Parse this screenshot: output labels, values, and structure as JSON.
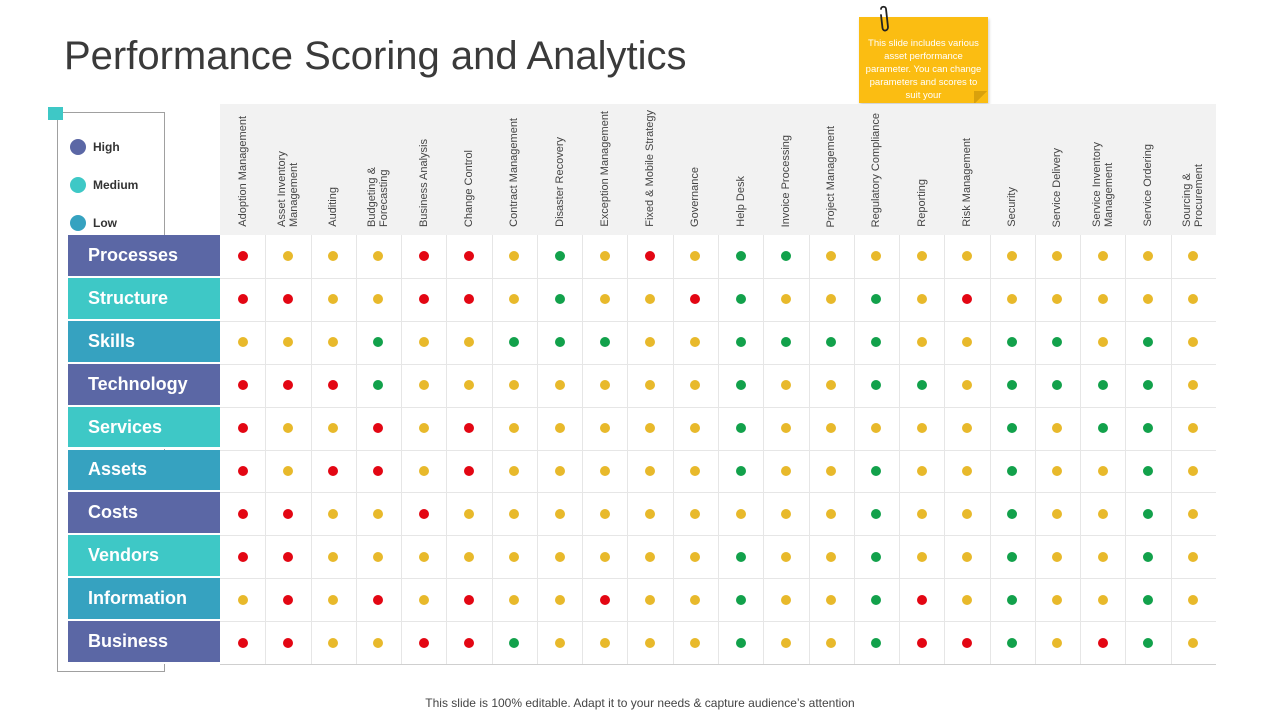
{
  "title": "Performance Scoring and Analytics",
  "note": "This slide includes various asset performance parameter. You can change parameters and scores to suit your",
  "footer": "This slide is 100% editable. Adapt it to your needs & capture audience’s attention",
  "legend": [
    {
      "label": "High",
      "color": "#5b67a5"
    },
    {
      "label": "Medium",
      "color": "#3ec8c6"
    },
    {
      "label": "Low",
      "color": "#36a2c0"
    }
  ],
  "colors": {
    "status": {
      "R": "#e30613",
      "Y": "#e8b92b",
      "G": "#12a14b"
    },
    "row_palette": [
      "#5b67a5",
      "#3ec8c6",
      "#36a2c0"
    ]
  },
  "columns": [
    "Adoption Management",
    "Asset Inventory Management",
    "Auditing",
    "Budgeting & Forecasting",
    "Business Analysis",
    "Change Control",
    "Contract Management",
    "Disaster Recovery",
    "Exception Management",
    "Fixed & Mobile Strategy",
    "Governance",
    "Help Desk",
    "Invoice Processing",
    "Project Management",
    "Regulatory Compliance",
    "Reporting",
    "Risk Management",
    "Security",
    "Service Delivery",
    "Service Inventory Management",
    "Service Ordering",
    "Sourcing & Procurement"
  ],
  "rows": [
    {
      "label": "Processes",
      "scores": "RYYYRRYGYRYGGYYYYYYYYY"
    },
    {
      "label": "Structure",
      "scores": "RRYYRRYGYYRGYYGYRYYYYY"
    },
    {
      "label": "Skills",
      "scores": "YYYGYYGGGYYGGGGYYGGYGY"
    },
    {
      "label": "Technology",
      "scores": "RRRGYYYYYYYGYYGGYGGGGY"
    },
    {
      "label": "Services",
      "scores": "RYYRYRYYYYYGYYYYYGYGGY"
    },
    {
      "label": "Assets",
      "scores": "RYRRYRYYYYYGYYGYYGYYGY"
    },
    {
      "label": "Costs",
      "scores": "RRYYRYYYYYYYYYGYYGYYGY"
    },
    {
      "label": "Vendors",
      "scores": "RRYYYYYYYYYGYYGYYGYYGY"
    },
    {
      "label": "Information",
      "scores": "YRYRYRYYRYYGYYGRYGYYGY"
    },
    {
      "label": "Business",
      "scores": "RRYYRRGYYYYGYYGRRGYRGY"
    }
  ]
}
